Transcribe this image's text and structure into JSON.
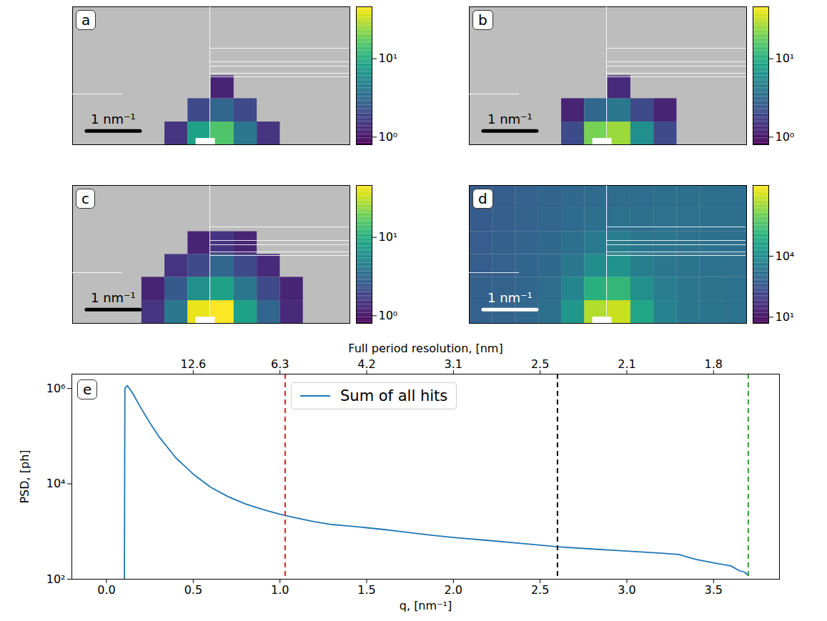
{
  "chart_data": [
    {
      "type": "heatmap",
      "panel": "a",
      "log": true,
      "xlim": [
        -2.48,
        2.69
      ],
      "ylim": [
        0,
        2.6
      ],
      "x_edges": [
        -2.48,
        -2.05,
        -1.62,
        -1.19,
        -0.76,
        -0.33,
        0.1,
        0.53,
        0.96,
        1.39,
        1.82,
        2.25,
        2.69
      ],
      "y_edges": [
        0,
        0.43,
        0.87,
        1.3,
        1.73,
        2.17,
        2.6
      ],
      "cells": [
        [
          null,
          null,
          null,
          null,
          1.5,
          8,
          15,
          4,
          1.5,
          null,
          null,
          null
        ],
        [
          null,
          null,
          null,
          null,
          null,
          2,
          3,
          2,
          null,
          null,
          null,
          null
        ],
        [
          null,
          null,
          null,
          null,
          null,
          null,
          1.2,
          null,
          null,
          null,
          null,
          null
        ],
        [
          null,
          null,
          null,
          null,
          null,
          null,
          null,
          null,
          null,
          null,
          null,
          null
        ],
        [
          null,
          null,
          null,
          null,
          null,
          null,
          null,
          null,
          null,
          null,
          null,
          null
        ],
        [
          null,
          null,
          null,
          null,
          null,
          null,
          null,
          null,
          null,
          null,
          null,
          null
        ]
      ],
      "clim": [
        0.8,
        46
      ],
      "cticks": [
        {
          "value": 1,
          "label": "10⁰"
        },
        {
          "value": 10,
          "label": "10¹"
        }
      ],
      "beamstop": {
        "x": [
          -0.18,
          0.18
        ],
        "y": [
          0,
          0.12
        ]
      },
      "scale_bar": {
        "length": 1,
        "label": "1 nm⁻¹",
        "color": "black"
      }
    },
    {
      "type": "heatmap",
      "panel": "b",
      "log": true,
      "xlim": [
        -2.48,
        2.69
      ],
      "ylim": [
        0,
        2.6
      ],
      "x_edges": [
        -2.48,
        -2.05,
        -1.62,
        -1.19,
        -0.76,
        -0.33,
        0.1,
        0.53,
        0.96,
        1.39,
        1.82,
        2.25,
        2.69
      ],
      "y_edges": [
        0,
        0.43,
        0.87,
        1.3,
        1.73,
        2.17,
        2.6
      ],
      "cells": [
        [
          null,
          null,
          null,
          null,
          2,
          20,
          25,
          6,
          2,
          null,
          null,
          null
        ],
        [
          null,
          null,
          null,
          null,
          1.2,
          3,
          4,
          2,
          1.2,
          null,
          null,
          null
        ],
        [
          null,
          null,
          null,
          null,
          null,
          null,
          1.3,
          null,
          null,
          null,
          null,
          null
        ],
        [
          null,
          null,
          null,
          null,
          null,
          null,
          null,
          null,
          null,
          null,
          null,
          null
        ],
        [
          null,
          null,
          null,
          null,
          null,
          null,
          null,
          null,
          null,
          null,
          null,
          null
        ],
        [
          null,
          null,
          null,
          null,
          null,
          null,
          null,
          null,
          null,
          null,
          null,
          null
        ]
      ],
      "clim": [
        0.8,
        46
      ],
      "cticks": [
        {
          "value": 1,
          "label": "10⁰"
        },
        {
          "value": 10,
          "label": "10¹"
        }
      ],
      "beamstop": {
        "x": [
          -0.18,
          0.18
        ],
        "y": [
          0,
          0.12
        ]
      },
      "scale_bar": {
        "length": 1,
        "label": "1 nm⁻¹",
        "color": "black"
      }
    },
    {
      "type": "heatmap",
      "panel": "c",
      "log": true,
      "xlim": [
        -2.48,
        2.69
      ],
      "ylim": [
        0,
        2.6
      ],
      "x_edges": [
        -2.48,
        -2.05,
        -1.62,
        -1.19,
        -0.76,
        -0.33,
        0.1,
        0.53,
        0.96,
        1.39,
        1.82,
        2.25,
        2.69
      ],
      "y_edges": [
        0,
        0.43,
        0.87,
        1.3,
        1.73,
        2.17,
        2.6
      ],
      "cells": [
        [
          null,
          null,
          null,
          1.5,
          4,
          40,
          45,
          8,
          3,
          1.3,
          null,
          null
        ],
        [
          null,
          null,
          null,
          1.2,
          2.5,
          6,
          8,
          4,
          2,
          1.2,
          null,
          null
        ],
        [
          null,
          null,
          null,
          null,
          1.5,
          2,
          3,
          2,
          1.3,
          null,
          null,
          null
        ],
        [
          null,
          null,
          null,
          null,
          null,
          1.2,
          1.5,
          1.2,
          null,
          null,
          null,
          null
        ],
        [
          null,
          null,
          null,
          null,
          null,
          null,
          null,
          null,
          null,
          null,
          null,
          null
        ],
        [
          null,
          null,
          null,
          null,
          null,
          null,
          null,
          null,
          null,
          null,
          null,
          null
        ]
      ],
      "clim": [
        0.8,
        46
      ],
      "cticks": [
        {
          "value": 1,
          "label": "10⁰"
        },
        {
          "value": 10,
          "label": "10¹"
        }
      ],
      "beamstop": {
        "x": [
          -0.18,
          0.18
        ],
        "y": [
          0,
          0.12
        ]
      },
      "scale_bar": {
        "length": 1,
        "label": "1 nm⁻¹",
        "color": "black"
      }
    },
    {
      "type": "heatmap",
      "panel": "d",
      "log": true,
      "xlim": [
        -2.48,
        2.69
      ],
      "ylim": [
        0,
        2.6
      ],
      "x_edges": [
        -2.48,
        -2.05,
        -1.62,
        -1.19,
        -0.76,
        -0.33,
        0.1,
        0.53,
        0.96,
        1.39,
        1.82,
        2.25,
        2.69
      ],
      "y_edges": [
        0,
        0.43,
        0.87,
        1.3,
        1.73,
        2.17,
        2.6
      ],
      "cells": [
        [
          600,
          700,
          900,
          1500,
          20000,
          5000000,
          8000000,
          50000,
          5000,
          2500,
          2000,
          1800
        ],
        [
          550,
          650,
          800,
          1200,
          6000,
          100000,
          150000,
          12000,
          3500,
          2200,
          1900,
          1700
        ],
        [
          500,
          600,
          750,
          1000,
          2500,
          10000,
          15000,
          4000,
          2500,
          2000,
          1800,
          1600
        ],
        [
          480,
          560,
          700,
          900,
          1500,
          3000,
          3500,
          2200,
          2000,
          1800,
          1700,
          1500
        ],
        [
          450,
          520,
          650,
          800,
          1100,
          1500,
          1700,
          1500,
          1600,
          1600,
          1500,
          1400
        ],
        [
          420,
          500,
          600,
          750,
          900,
          1100,
          1200,
          1200,
          1400,
          1500,
          1400,
          1300
        ]
      ],
      "clim": [
        5,
        30000000
      ],
      "cticks": [
        {
          "value": 10,
          "label": "10¹"
        },
        {
          "value": 10000,
          "label": "10⁴"
        }
      ],
      "beamstop": {
        "x": [
          -0.18,
          0.18
        ],
        "y": [
          0,
          0.12
        ]
      },
      "scale_bar": {
        "length": 1,
        "label": "1 nm⁻¹",
        "color": "white"
      }
    },
    {
      "type": "line",
      "panel": "e",
      "log": "y",
      "legend": "upper center",
      "x_label": "q, [nm⁻¹]",
      "x2_label": "Full period resolution, [nm]",
      "y_label": "PSD, [ph]",
      "xlim": [
        -0.2,
        3.88
      ],
      "xticks": [
        {
          "value": 0,
          "label": "0.0"
        },
        {
          "value": 0.5,
          "label": "0.5"
        },
        {
          "value": 1,
          "label": "1.0"
        },
        {
          "value": 1.5,
          "label": "1.5"
        },
        {
          "value": 2,
          "label": "2.0"
        },
        {
          "value": 2.5,
          "label": "2.5"
        },
        {
          "value": 3,
          "label": "3.0"
        },
        {
          "value": 3.5,
          "label": "3.5"
        }
      ],
      "x2ticks": [
        {
          "value": 0.5,
          "label": "12.6"
        },
        {
          "value": 1,
          "label": "6.3"
        },
        {
          "value": 1.5,
          "label": "4.2"
        },
        {
          "value": 2,
          "label": "3.1"
        },
        {
          "value": 2.5,
          "label": "2.5"
        },
        {
          "value": 3,
          "label": "2.1"
        },
        {
          "value": 3.5,
          "label": "1.8"
        }
      ],
      "ylim": [
        100,
        2000000
      ],
      "yticks": [
        {
          "value": 100,
          "label": "10²"
        },
        {
          "value": 10000,
          "label": "10⁴"
        },
        {
          "value": 1000000,
          "label": "10⁶"
        }
      ],
      "series": [
        {
          "name": "Sum of all hits",
          "color": "#1f77b4",
          "x": [
            0.103,
            0.106,
            0.12,
            0.15,
            0.2,
            0.25,
            0.3,
            0.4,
            0.5,
            0.6,
            0.7,
            0.8,
            0.9,
            1.0,
            1.1,
            1.2,
            1.3,
            1.4,
            1.5,
            1.6,
            1.7,
            1.8,
            1.9,
            2.0,
            2.2,
            2.4,
            2.6,
            2.8,
            3.0,
            3.2,
            3.3,
            3.35,
            3.4,
            3.5,
            3.6,
            3.65,
            3.68,
            3.7
          ],
          "values": [
            100,
            1000000,
            1150000,
            800000,
            380000,
            190000,
            100000,
            35000,
            16000,
            8500,
            5400,
            3800,
            2900,
            2300,
            1900,
            1600,
            1400,
            1300,
            1200,
            1100,
            1000,
            900,
            820,
            750,
            650,
            560,
            480,
            430,
            390,
            350,
            330,
            290,
            260,
            220,
            190,
            150,
            140,
            120
          ]
        }
      ],
      "vlines": [
        {
          "x": 1.03,
          "color": "#d62728",
          "line_style": "dashed"
        },
        {
          "x": 2.6,
          "color": "black",
          "line_style": "dashed"
        },
        {
          "x": 3.7,
          "color": "#2ca02c",
          "line_style": "dashed"
        }
      ]
    }
  ]
}
